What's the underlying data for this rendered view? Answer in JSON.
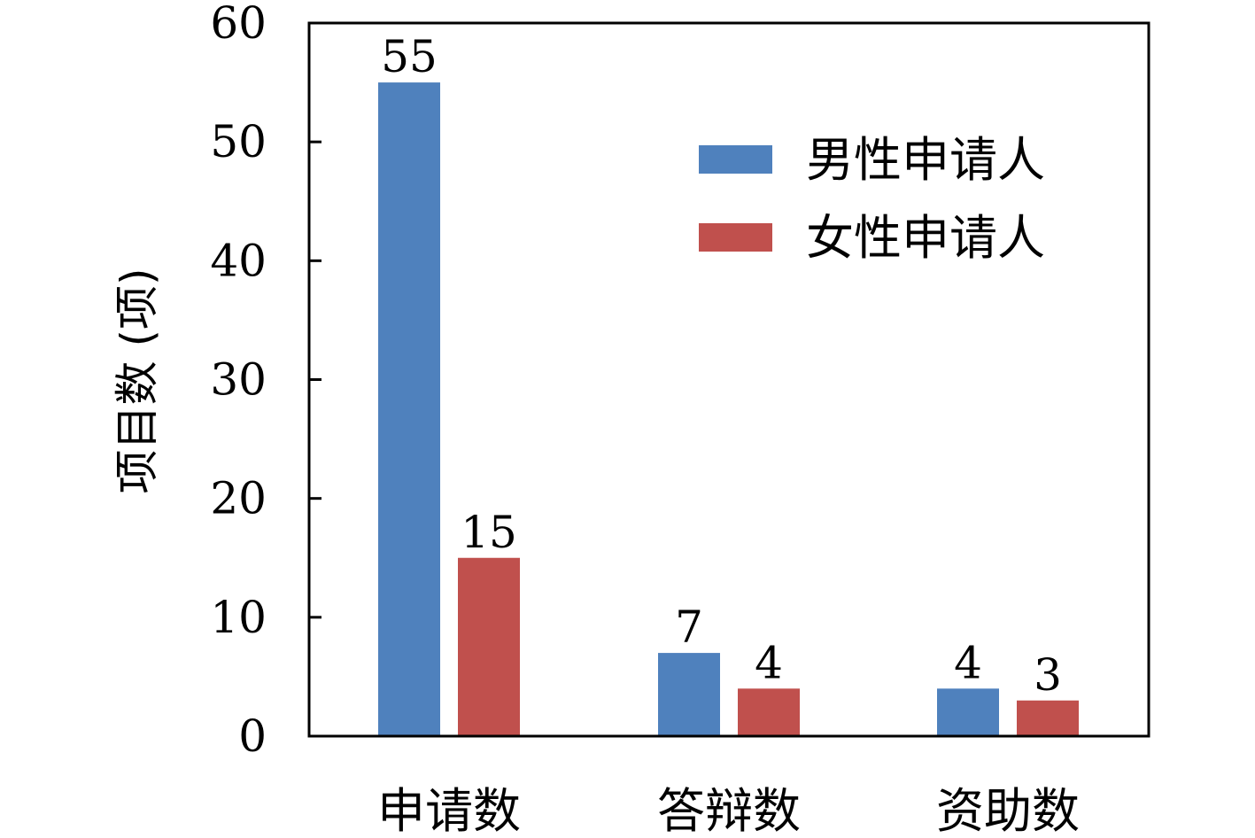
{
  "chart_data": {
    "type": "bar",
    "categories": [
      "申请数",
      "答辩数",
      "资助数"
    ],
    "series": [
      {
        "name": "男性申请人",
        "values": [
          55,
          7,
          4
        ],
        "color": "#4f81bd"
      },
      {
        "name": "女性申请人",
        "values": [
          15,
          4,
          3
        ],
        "color": "#c0504d"
      }
    ],
    "ylabel": "项目数 (项)",
    "xlabel": "",
    "ylim": [
      0,
      60
    ],
    "yticks": [
      0,
      10,
      20,
      30,
      40,
      50,
      60
    ],
    "grid": false,
    "legend_position": "top-right",
    "data_labels": true
  }
}
